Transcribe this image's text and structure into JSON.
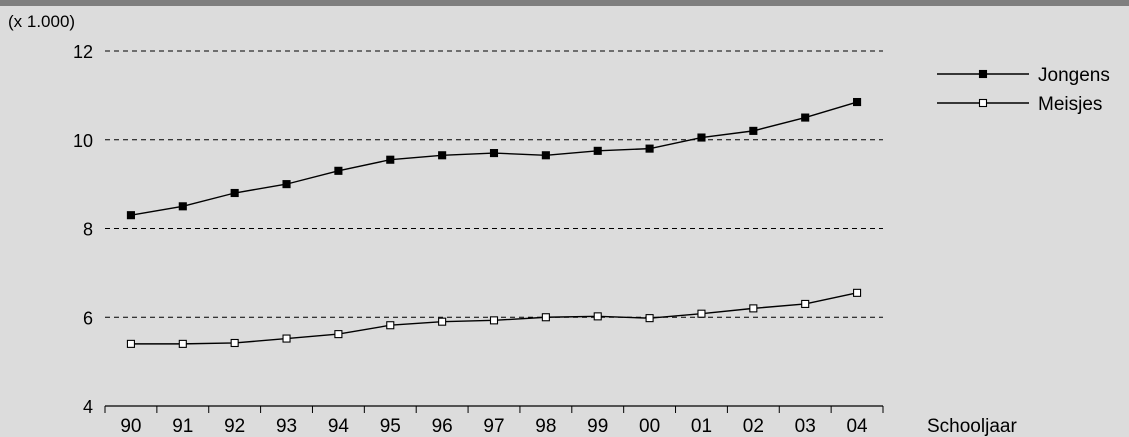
{
  "chart_data": {
    "type": "line",
    "unit_label": "(x 1.000)",
    "xlabel": "Schooljaar",
    "categories": [
      "90",
      "91",
      "92",
      "93",
      "94",
      "95",
      "96",
      "97",
      "98",
      "99",
      "00",
      "01",
      "02",
      "03",
      "04"
    ],
    "ylim": [
      4,
      12
    ],
    "yticks": [
      4,
      6,
      8,
      10,
      12
    ],
    "grid": "dashed horizontal at 6, 8, 10, 12",
    "legend_position": "top-right",
    "series": [
      {
        "name": "Jongens",
        "marker": "filled-square",
        "color": "#000000",
        "values": [
          8.3,
          8.5,
          8.8,
          9.0,
          9.3,
          9.55,
          9.65,
          9.7,
          9.65,
          9.75,
          9.8,
          10.05,
          10.2,
          10.5,
          10.85
        ]
      },
      {
        "name": "Meisjes",
        "marker": "open-square",
        "color": "#000000",
        "values": [
          5.4,
          5.4,
          5.42,
          5.52,
          5.62,
          5.82,
          5.9,
          5.93,
          6.0,
          6.02,
          5.98,
          6.08,
          6.2,
          6.3,
          6.55
        ]
      }
    ]
  }
}
